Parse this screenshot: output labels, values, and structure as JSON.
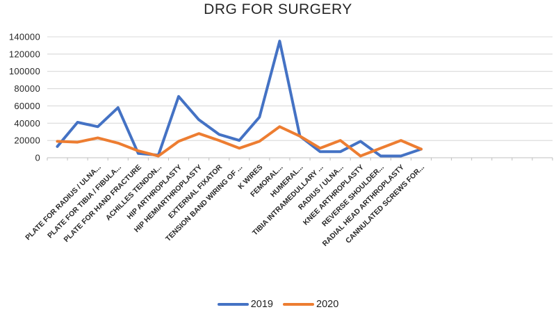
{
  "chart_data": {
    "type": "line",
    "title": "DRG FOR SURGERY",
    "categories": [
      "",
      "",
      "PLATE FOR RADIUS / ULNA...",
      "PLATE FOR TIBIA / FIBULA...",
      "PLATE FOR HAND FRACTURE",
      "ACHILLES TENDON...",
      "HIP ARTHROPLASTY",
      "HIP HEMIARTHROPLASTY",
      "EXTERNAL FIXATOR",
      "TENSION BAND WIRING OF ...",
      "K WIRES",
      "FEMORAL...",
      "HUMERAL...",
      "TIBIA INTRAMEDULLARY ...",
      "RADIUS / ULNA...",
      "KNEE ARTHROPLASTY",
      "REVERSE SHOULDER...",
      "RADIAL HEAD ARTHROPLASTY",
      "CANNULATED SCREWS FOR..."
    ],
    "series": [
      {
        "name": "2019",
        "color": "#4472C4",
        "values": [
          13000,
          41000,
          36000,
          58000,
          5000,
          3000,
          71000,
          44000,
          27000,
          20000,
          47000,
          135000,
          25000,
          7000,
          7000,
          19000,
          2000,
          2000,
          10000
        ]
      },
      {
        "name": "2020",
        "color": "#ED7D31",
        "values": [
          19000,
          18000,
          23000,
          17000,
          8000,
          2000,
          19000,
          28000,
          20000,
          11000,
          19000,
          36000,
          25000,
          11000,
          20000,
          2000,
          11000,
          20000,
          10000
        ]
      }
    ],
    "ylim": [
      0,
      140000
    ],
    "y_tick_step": 20000,
    "y_tick_labels": [
      "0",
      "20000",
      "40000",
      "60000",
      "80000",
      "100000",
      "120000",
      "140000"
    ],
    "grid": true,
    "legend_position": "bottom",
    "x_label_rotation_deg": -45,
    "total_category_slots": 25,
    "grid_color": "#D9D9D9",
    "axis_color": "#BFBFBF",
    "text_color": "#262626"
  }
}
